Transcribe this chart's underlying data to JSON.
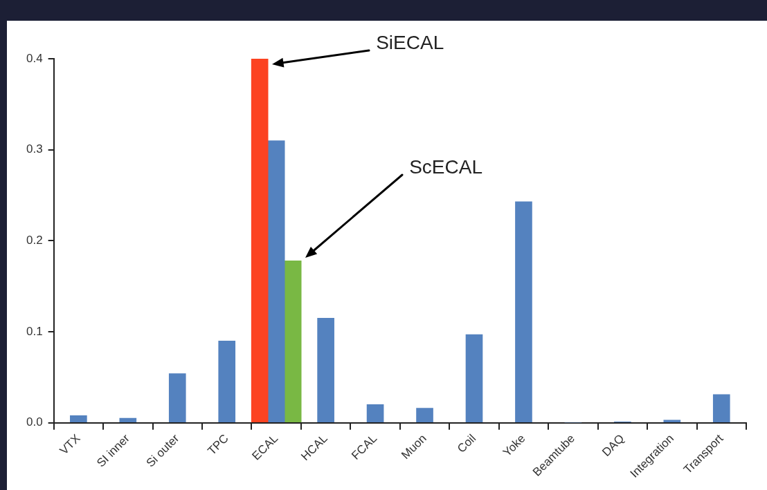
{
  "chart_data": {
    "type": "bar",
    "categories": [
      "VTX",
      "SI inner",
      "Si outer",
      "TPC",
      "ECAL",
      "HCAL",
      "FCAL",
      "Muon",
      "Coil",
      "Yoke",
      "Beamtube",
      "DAQ",
      "Integration",
      "Transport"
    ],
    "series": [
      {
        "name": "SiECAL",
        "color": "#fc4321",
        "values": [
          null,
          null,
          null,
          null,
          0.4,
          null,
          null,
          null,
          null,
          null,
          null,
          null,
          null,
          null
        ]
      },
      {
        "color": "#5482bf",
        "values": [
          0.008,
          0.005,
          0.054,
          0.09,
          0.31,
          0.115,
          0.02,
          0.016,
          0.097,
          0.243,
          0,
          0.001,
          0.003,
          0.031
        ]
      },
      {
        "name": "ScECAL",
        "color": "#79b844",
        "values": [
          null,
          null,
          null,
          null,
          0.178,
          null,
          null,
          null,
          null,
          null,
          null,
          null,
          null,
          null
        ]
      }
    ],
    "ylim": [
      0,
      0.4
    ],
    "yticks": [
      {
        "value": 0,
        "label": "0.0"
      },
      0.1,
      0.2,
      0.3,
      0.4
    ],
    "grid": false,
    "legend": false
  }
}
